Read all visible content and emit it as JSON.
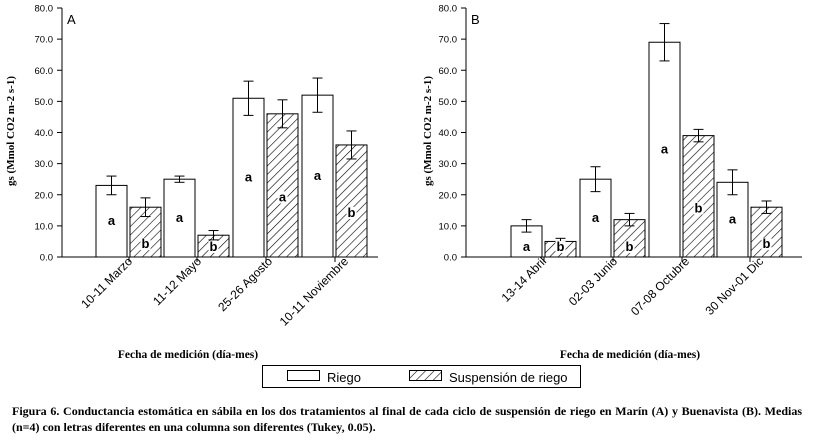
{
  "caption": "Figura 6. Conductancia estomática en sábila en los dos tratamientos al final de cada ciclo de suspensión de riego en Marín (A) y Buenavista (B). Medias (n=4) con letras diferentes en una columna son diferentes (Tukey, 0.05).",
  "legend": {
    "riego": "Riego",
    "suspension": "Suspensión  de riego"
  },
  "colors": {
    "bar_fill": "#ffffff",
    "stroke": "#000000",
    "hatch": "#000000"
  },
  "chart_data": [
    {
      "type": "bar",
      "panel_label": "A",
      "ylabel": "gs (Mmol CO2 m-2 s-1)",
      "xlabel": "Fecha de medición (día-mes)",
      "ylim": [
        0,
        80
      ],
      "ytick_labels": [
        "0.0",
        "10.0",
        "20.0",
        "30.0",
        "40.0",
        "50.0",
        "60.0",
        "70.0",
        "80.0"
      ],
      "categories": [
        "10-11 Marzo",
        "11-12 Mayo",
        "25-26 Agosto",
        "10-11 Noviembre"
      ],
      "series": [
        {
          "name": "Riego",
          "values": [
            23,
            25,
            51,
            52
          ],
          "errors": [
            3,
            1,
            5.5,
            5.5
          ],
          "letters": [
            "a",
            "a",
            "a",
            "a"
          ]
        },
        {
          "name": "Suspensión  de riego",
          "values": [
            16,
            7,
            46,
            36
          ],
          "errors": [
            3,
            1.5,
            4.5,
            4.5
          ],
          "letters": [
            "b",
            "b",
            "a",
            "b"
          ]
        }
      ]
    },
    {
      "type": "bar",
      "panel_label": "B",
      "ylabel": "gs (Mmol CO2 m-2 s-1)",
      "xlabel": "Fecha de medición (día-mes)",
      "ylim": [
        0,
        80
      ],
      "ytick_labels": [
        "0.0",
        "10.0",
        "20.0",
        "30.0",
        "40.0",
        "50.0",
        "60.0",
        "70.0",
        "80.0"
      ],
      "categories": [
        "13-14 Abril",
        "02-03 Junio",
        "07-08 Octubre",
        "30 Nov-01 Dic"
      ],
      "series": [
        {
          "name": "Riego",
          "values": [
            10,
            25,
            69,
            24
          ],
          "errors": [
            2,
            4,
            6,
            4
          ],
          "letters": [
            "a",
            "a",
            "a",
            "a"
          ]
        },
        {
          "name": "Suspensión  de riego",
          "values": [
            5,
            12,
            39,
            16
          ],
          "errors": [
            1,
            2,
            2,
            2
          ],
          "letters": [
            "b",
            "b",
            "b",
            "b"
          ]
        }
      ]
    }
  ]
}
